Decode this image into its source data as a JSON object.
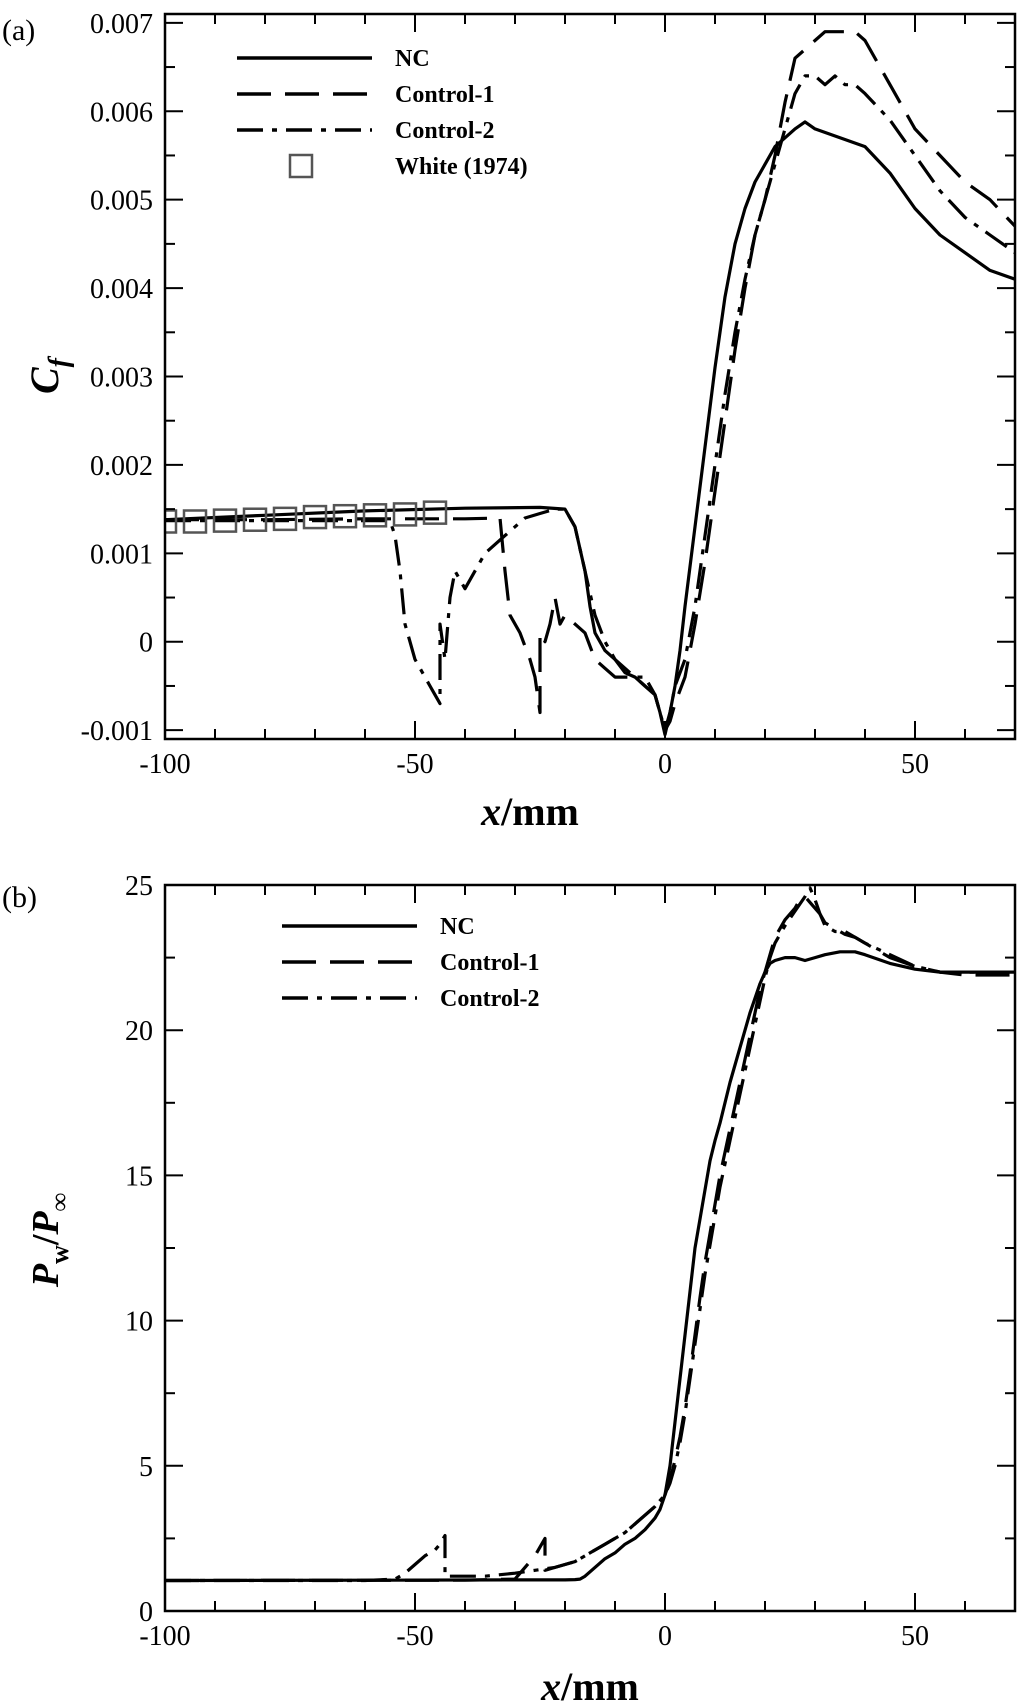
{
  "chart_data": [
    {
      "panel": "(a)",
      "type": "line",
      "xlabel_italic": "x",
      "xlabel_rest": "/mm",
      "ylabel_main": "C",
      "ylabel_sub": "f",
      "xlim": [
        -100,
        70
      ],
      "ylim": [
        -0.0011,
        0.0071
      ],
      "xticks": [
        -100,
        -50,
        0,
        50
      ],
      "xtick_labels": [
        "-100",
        "-50",
        "0",
        "50"
      ],
      "yticks": [
        -0.001,
        0,
        0.001,
        0.002,
        0.003,
        0.004,
        0.005,
        0.006,
        0.007
      ],
      "ytick_labels": [
        "-0.001",
        "0",
        "0.001",
        "0.002",
        "0.003",
        "0.004",
        "0.005",
        "0.006",
        "0.007"
      ],
      "legend_position": "top-left",
      "series": [
        {
          "name": "NC",
          "style": "solid",
          "x": [
            -100,
            -80,
            -60,
            -40,
            -25,
            -20,
            -18,
            -16,
            -15,
            -14,
            -12,
            -10,
            -8,
            -6,
            -4,
            -2,
            -1,
            0,
            1,
            2,
            3,
            4,
            6,
            8,
            10,
            12,
            14,
            16,
            18,
            20,
            22,
            24,
            26,
            28,
            30,
            35,
            40,
            45,
            50,
            55,
            60,
            65,
            70
          ],
          "y": [
            0.00138,
            0.00143,
            0.00148,
            0.00151,
            0.00152,
            0.0015,
            0.0013,
            0.0008,
            0.0004,
            0.0001,
            -0.0001,
            -0.0002,
            -0.00035,
            -0.0004,
            -0.0005,
            -0.0006,
            -0.0008,
            -0.00105,
            -0.0008,
            -0.0005,
            -0.0001,
            0.0004,
            0.0013,
            0.0022,
            0.0031,
            0.0039,
            0.0045,
            0.0049,
            0.0052,
            0.0054,
            0.0056,
            0.0057,
            0.0058,
            0.00588,
            0.0058,
            0.0057,
            0.0056,
            0.0053,
            0.0049,
            0.0046,
            0.0044,
            0.0042,
            0.0041
          ]
        },
        {
          "name": "Control-1",
          "style": "dashed",
          "x": [
            -100,
            -80,
            -60,
            -40,
            -33,
            -32,
            -31,
            -29,
            -27,
            -26,
            -25,
            -25,
            -24,
            -23,
            -22,
            -21,
            -20,
            -18,
            -16,
            -14,
            -12,
            -10,
            -8,
            -6,
            -4,
            -2,
            -1,
            0,
            1,
            2,
            4,
            6,
            8,
            10,
            12,
            14,
            16,
            18,
            20,
            22,
            24,
            26,
            28,
            30,
            32,
            34,
            36,
            38,
            40,
            45,
            50,
            55,
            60,
            65,
            70
          ],
          "y": [
            0.00138,
            0.00138,
            0.00139,
            0.00139,
            0.0014,
            0.0008,
            0.0003,
            0.0001,
            -0.0002,
            -0.0004,
            -0.0008,
            0.0001,
            0.0,
            0.0002,
            0.0005,
            0.0002,
            0.0003,
            0.0002,
            0.0001,
            -0.0002,
            -0.0003,
            -0.0004,
            -0.0004,
            -0.0004,
            -0.0005,
            -0.0006,
            -0.0008,
            -0.001,
            -0.0009,
            -0.0007,
            -0.0004,
            0.0002,
            0.0009,
            0.0017,
            0.0025,
            0.0033,
            0.004,
            0.0046,
            0.005,
            0.0055,
            0.0061,
            0.0066,
            0.0067,
            0.0068,
            0.0069,
            0.0069,
            0.0069,
            0.0069,
            0.0068,
            0.0063,
            0.0058,
            0.0055,
            0.0052,
            0.005,
            0.0047
          ]
        },
        {
          "name": "Control-2",
          "style": "dashdot",
          "x": [
            -100,
            -80,
            -60,
            -55,
            -54,
            -53,
            -52,
            -50,
            -48,
            -47,
            -46,
            -45,
            -45,
            -44,
            -43,
            -42,
            -40,
            -36,
            -32,
            -30,
            -28,
            -25,
            -22,
            -20,
            -18,
            -16,
            -14,
            -12,
            -10,
            -8,
            -6,
            -4,
            -2,
            -1,
            0,
            1,
            2,
            4,
            6,
            8,
            10,
            12,
            14,
            16,
            18,
            20,
            22,
            24,
            26,
            28,
            30,
            32,
            34,
            36,
            38,
            40,
            45,
            50,
            55,
            60,
            65,
            70
          ],
          "y": [
            0.00137,
            0.00137,
            0.00137,
            0.00137,
            0.0012,
            0.0008,
            0.0002,
            -0.0002,
            -0.0004,
            -0.0005,
            -0.0006,
            -0.0007,
            0.0002,
            -0.0002,
            0.0005,
            0.0008,
            0.0006,
            0.001,
            0.0012,
            0.0013,
            0.0014,
            0.00145,
            0.0015,
            0.0015,
            0.0013,
            0.0008,
            0.0003,
            0.0,
            -0.0002,
            -0.0003,
            -0.0004,
            -0.0004,
            -0.0006,
            -0.0008,
            -0.001,
            -0.0008,
            -0.0005,
            -0.0002,
            0.0004,
            0.0012,
            0.002,
            0.0028,
            0.0035,
            0.0041,
            0.0046,
            0.005,
            0.0054,
            0.0058,
            0.0062,
            0.0064,
            0.0064,
            0.0063,
            0.0064,
            0.0063,
            0.0063,
            0.0062,
            0.0059,
            0.0055,
            0.0051,
            0.0048,
            0.0046,
            0.0044
          ]
        },
        {
          "name": "White (1974)",
          "style": "markers",
          "x": [
            -100,
            -94,
            -88,
            -82,
            -76,
            -70,
            -64,
            -58,
            -52,
            -46
          ],
          "y": [
            0.00136,
            0.00136,
            0.00137,
            0.00138,
            0.00139,
            0.00141,
            0.00142,
            0.00143,
            0.00144,
            0.00146
          ]
        }
      ]
    },
    {
      "panel": "(b)",
      "type": "line",
      "xlabel_italic": "x",
      "xlabel_rest": "/mm",
      "ylabel_main": "P",
      "ylabel_sub": "w",
      "ylabel_mid": "/",
      "ylabel_main2": "P",
      "ylabel_sub2": "∞",
      "xlim": [
        -100,
        70
      ],
      "ylim": [
        0,
        25
      ],
      "xticks": [
        -100,
        -50,
        0,
        50
      ],
      "xtick_labels": [
        "-100",
        "-50",
        "0",
        "50"
      ],
      "yticks": [
        0,
        5,
        10,
        15,
        20,
        25
      ],
      "ytick_labels": [
        "0",
        "5",
        "10",
        "15",
        "20",
        "25"
      ],
      "legend_position": "top-left",
      "series": [
        {
          "name": "NC",
          "style": "solid",
          "x": [
            -100,
            -60,
            -30,
            -20,
            -18,
            -17,
            -16,
            -14,
            -12,
            -10,
            -8,
            -6,
            -4,
            -2,
            -1,
            0,
            1,
            2,
            3,
            4,
            5,
            6,
            7,
            8,
            9,
            10,
            11,
            12,
            13,
            14,
            15,
            16,
            17,
            18,
            19,
            20,
            21,
            22,
            24,
            26,
            28,
            30,
            32,
            35,
            38,
            40,
            45,
            50,
            55,
            60,
            65,
            70
          ],
          "y": [
            1.05,
            1.06,
            1.07,
            1.07,
            1.08,
            1.1,
            1.2,
            1.5,
            1.8,
            2.0,
            2.3,
            2.5,
            2.8,
            3.2,
            3.5,
            4.0,
            5.0,
            6.5,
            8.0,
            9.5,
            11.0,
            12.5,
            13.5,
            14.5,
            15.5,
            16.2,
            16.8,
            17.5,
            18.2,
            18.8,
            19.4,
            20.0,
            20.6,
            21.1,
            21.6,
            22.0,
            22.3,
            22.4,
            22.5,
            22.5,
            22.4,
            22.5,
            22.6,
            22.7,
            22.7,
            22.6,
            22.3,
            22.1,
            22.0,
            22.0,
            22.0,
            22.0
          ]
        },
        {
          "name": "Control-1",
          "style": "dashed",
          "x": [
            -100,
            -40,
            -30,
            -28,
            -26,
            -25,
            -24,
            -24,
            -22,
            -20,
            -18,
            -16,
            -14,
            -12,
            -10,
            -8,
            -6,
            -4,
            -2,
            0,
            1,
            2,
            3,
            4,
            5,
            6,
            7,
            8,
            9,
            10,
            11,
            12,
            13,
            14,
            15,
            16,
            17,
            18,
            19,
            20,
            21,
            22,
            24,
            26,
            27,
            28,
            29,
            30,
            31,
            32,
            34,
            36,
            38,
            40,
            45,
            50,
            55,
            60,
            65,
            70
          ],
          "y": [
            1.05,
            1.06,
            1.1,
            1.5,
            1.9,
            2.2,
            2.5,
            1.4,
            1.5,
            1.6,
            1.7,
            1.9,
            2.1,
            2.3,
            2.5,
            2.7,
            3.0,
            3.3,
            3.6,
            4.0,
            4.5,
            5.2,
            6.0,
            7.0,
            8.2,
            9.5,
            10.8,
            12.0,
            13.0,
            14.0,
            15.0,
            15.8,
            16.6,
            17.4,
            18.2,
            19.0,
            19.8,
            20.6,
            21.4,
            22.0,
            22.6,
            23.2,
            23.8,
            24.2,
            24.5,
            24.6,
            24.4,
            24.2,
            24.0,
            23.7,
            23.5,
            23.3,
            23.2,
            23.0,
            22.5,
            22.2,
            22.0,
            21.9,
            21.9,
            21.9
          ]
        },
        {
          "name": "Control-2",
          "style": "dashdot",
          "x": [
            -100,
            -60,
            -54,
            -52,
            -50,
            -48,
            -46,
            -45,
            -44,
            -44,
            -42,
            -40,
            -36,
            -30,
            -26,
            -22,
            -20,
            -18,
            -16,
            -14,
            -12,
            -10,
            -8,
            -6,
            -4,
            -2,
            0,
            1,
            2,
            3,
            4,
            5,
            6,
            7,
            8,
            9,
            10,
            11,
            12,
            13,
            14,
            15,
            16,
            17,
            18,
            19,
            20,
            21,
            22,
            24,
            26,
            28,
            29,
            30,
            31,
            32,
            34,
            36,
            38,
            40,
            45,
            50,
            55,
            60,
            65,
            70
          ],
          "y": [
            1.05,
            1.05,
            1.1,
            1.3,
            1.6,
            1.9,
            2.1,
            2.3,
            2.6,
            1.2,
            1.2,
            1.2,
            1.2,
            1.3,
            1.4,
            1.5,
            1.6,
            1.7,
            1.9,
            2.1,
            2.3,
            2.5,
            2.7,
            3.0,
            3.3,
            3.6,
            4.0,
            4.4,
            5.0,
            5.8,
            6.8,
            8.0,
            9.2,
            10.4,
            11.6,
            12.6,
            13.6,
            14.6,
            15.4,
            16.2,
            17.0,
            17.8,
            18.6,
            19.4,
            20.2,
            21.0,
            21.8,
            22.5,
            23.0,
            23.6,
            24.1,
            24.6,
            24.9,
            24.5,
            24.0,
            23.6,
            23.4,
            23.4,
            23.2,
            23.0,
            22.6,
            22.2,
            22.0,
            22.0,
            22.0,
            22.0
          ]
        }
      ]
    }
  ]
}
